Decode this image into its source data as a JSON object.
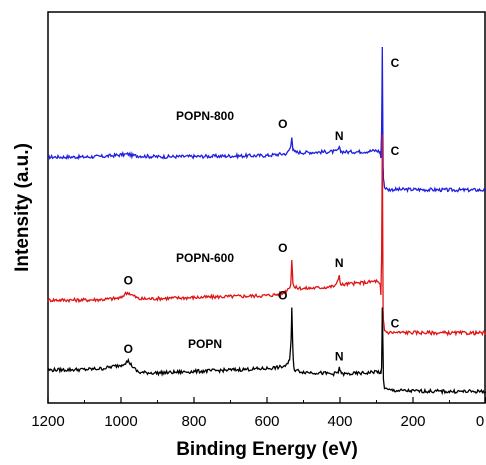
{
  "chart_data": {
    "type": "line",
    "xlabel": "Binding Energy (eV)",
    "ylabel": "Intensity (a.u.)",
    "xlim": [
      1200,
      0
    ],
    "x_reversed": true,
    "xticks": [
      1200,
      1000,
      800,
      600,
      400,
      200,
      0
    ],
    "y_ticks_labeled": false,
    "colors": {
      "POPN-800": "#1f1fe0",
      "POPN-600": "#e01414",
      "POPN": "#000000"
    },
    "series": [
      {
        "name": "POPN-800",
        "label": "POPN-800",
        "x": [
          1200,
          1100,
          1050,
          990,
          980,
          970,
          900,
          800,
          700,
          600,
          545,
          535,
          532,
          529,
          525,
          500,
          450,
          410,
          402,
          398,
          380,
          330,
          300,
          290,
          288,
          286,
          284,
          283,
          282,
          281,
          278,
          270,
          250,
          200,
          100,
          0
        ],
        "y": [
          0.0,
          0.0,
          0.1,
          0.5,
          0.6,
          0.3,
          0.05,
          0.1,
          0.2,
          0.3,
          0.7,
          2.0,
          4.2,
          1.5,
          1.0,
          0.9,
          1.0,
          1.1,
          1.8,
          1.1,
          1.0,
          1.1,
          1.3,
          1.0,
          -0.2,
          5.0,
          22.0,
          10.0,
          -2.0,
          -4.0,
          -6.0,
          -6.5,
          -6.5,
          -6.5,
          -6.6,
          -6.6
        ],
        "peak_labels": [
          {
            "text": "O",
            "x": 532
          },
          {
            "text": "N",
            "x": 402
          },
          {
            "text": "C",
            "x": 285
          }
        ]
      },
      {
        "name": "POPN-600",
        "label": "POPN-600",
        "x": [
          1200,
          1100,
          1050,
          1000,
          990,
          980,
          970,
          950,
          900,
          800,
          700,
          600,
          560,
          545,
          535,
          532,
          529,
          525,
          500,
          450,
          420,
          410,
          402,
          398,
          380,
          330,
          300,
          290,
          288,
          286,
          284,
          283,
          282,
          281,
          278,
          270,
          250,
          200,
          100,
          0
        ],
        "y": [
          0.0,
          0.0,
          0.1,
          0.4,
          1.2,
          1.5,
          1.0,
          0.2,
          0.3,
          0.5,
          0.7,
          0.9,
          1.2,
          2.0,
          3.0,
          8.0,
          3.5,
          2.5,
          2.3,
          2.5,
          2.7,
          3.0,
          5.0,
          3.0,
          3.2,
          3.5,
          3.8,
          3.0,
          1.0,
          8.0,
          33.0,
          15.0,
          -2.0,
          -4.0,
          -6.0,
          -6.5,
          -6.5,
          -6.5,
          -6.6,
          -6.6
        ],
        "peak_labels": [
          {
            "text": "O",
            "x": 980
          },
          {
            "text": "O",
            "x": 532
          },
          {
            "text": "N",
            "x": 402
          },
          {
            "text": "C",
            "x": 285
          }
        ]
      },
      {
        "name": "POPN",
        "label": "POPN",
        "x": [
          1200,
          1100,
          1050,
          1000,
          990,
          980,
          975,
          960,
          950,
          900,
          800,
          700,
          600,
          560,
          545,
          538,
          534,
          532,
          530,
          528,
          525,
          500,
          450,
          420,
          410,
          405,
          402,
          398,
          395,
          380,
          330,
          300,
          290,
          288,
          286,
          284,
          283,
          282,
          281,
          278,
          270,
          250,
          200,
          100,
          0
        ],
        "y": [
          0.0,
          0.1,
          0.3,
          1.0,
          1.4,
          1.8,
          1.3,
          0.0,
          -0.5,
          -0.6,
          -0.3,
          0.0,
          0.3,
          0.6,
          1.0,
          2.0,
          6.0,
          12.5,
          6.0,
          2.0,
          0.0,
          -0.4,
          -0.6,
          -0.8,
          -0.6,
          -0.5,
          0.3,
          -0.2,
          -0.8,
          -0.8,
          -0.6,
          -0.3,
          -0.5,
          -1.0,
          0.5,
          12.5,
          8.0,
          3.0,
          -2.0,
          -3.5,
          -4.0,
          -4.1,
          -4.2,
          -4.3,
          -4.3
        ],
        "peak_labels": [
          {
            "text": "O",
            "x": 980
          },
          {
            "text": "O",
            "x": 532
          },
          {
            "text": "N",
            "x": 402
          },
          {
            "text": "C",
            "x": 285
          }
        ]
      }
    ]
  }
}
